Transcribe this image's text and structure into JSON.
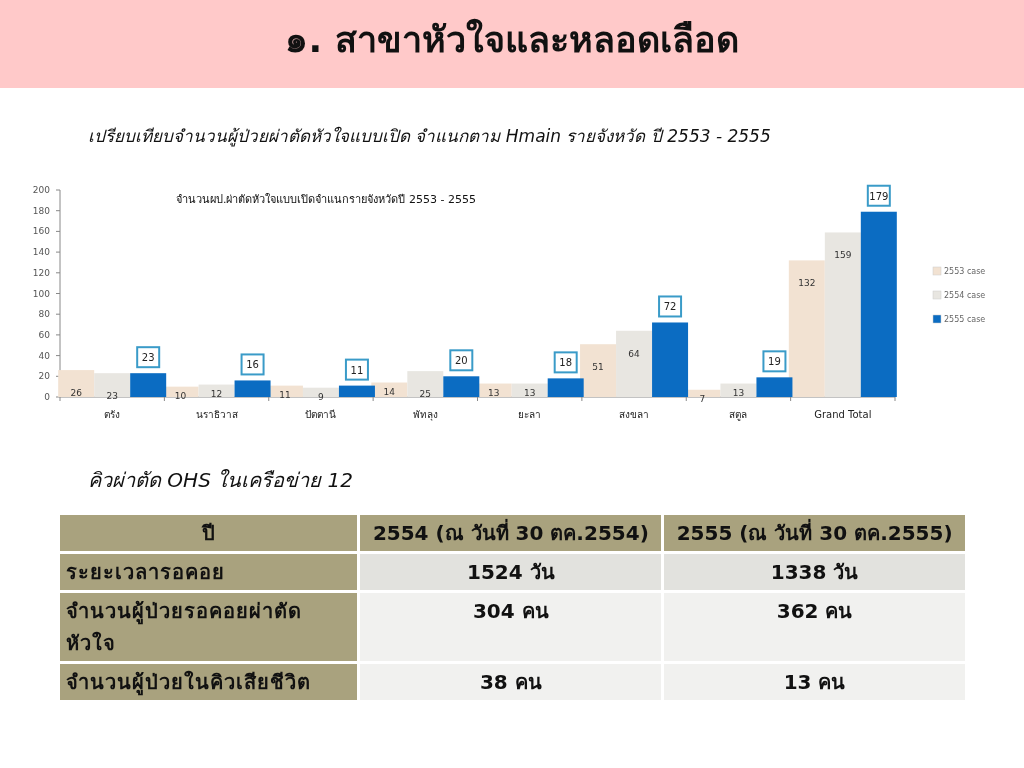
{
  "chart_data": [
    {
      "type": "bar",
      "title": "จำนวนผป.ผ่าตัดหัวใจแบบเปิดจำแนกรายจังหวัดปี  2553 - 2555",
      "subtitle": "เปรียบเทียบจำนวนผู้ป่วยผ่าตัดหัวใจแบบเปิด จำแนกตาม Hmain รายจังหวัด ปี 2553 - 2555",
      "annotations": [
        "๑. สาขาหัวใจและหลอดเลือด"
      ],
      "categories": [
        "ตรัง",
        "นราธิวาส",
        "ปัตตานี",
        "พัทลุง",
        "ยะลา",
        "สงขลา",
        "สตูล",
        "Grand Total"
      ],
      "series": [
        {
          "name": "2553 case",
          "color": "#f2e2d2",
          "values": [
            26,
            10,
            11,
            14,
            13,
            51,
            7,
            132
          ]
        },
        {
          "name": "2554 case",
          "color": "#e8e6e1",
          "values": [
            23,
            12,
            9,
            25,
            13,
            64,
            13,
            159
          ]
        },
        {
          "name": "2555 case",
          "color": "#0b6cc2",
          "values": [
            23,
            16,
            11,
            20,
            18,
            72,
            19,
            179
          ]
        }
      ],
      "ylim": [
        0,
        200
      ],
      "yticks": [
        0,
        20,
        40,
        60,
        80,
        100,
        120,
        140,
        160,
        180,
        200
      ],
      "data_labels": true,
      "legend": "right",
      "grid": false
    },
    {
      "type": "other",
      "title": "คิวผ่าตัด  OHS ในเครือข่าย 12",
      "annotations": [
        "ปี",
        "2554 (ณ วันที่ 30 ตค.2554)",
        "2555 (ณ วันที่ 30 ตค.2555)",
        "ระยะเวลารอคอย",
        "1524 วัน",
        "1338 วัน",
        "จำนวนผู้ป่วยรอคอยผ่าตัดหัวใจ",
        "304 คน",
        "362 คน",
        "จำนวนผู้ป่วยในคิวเสียชีวิต",
        "38 คน",
        "13 คน"
      ]
    }
  ]
}
